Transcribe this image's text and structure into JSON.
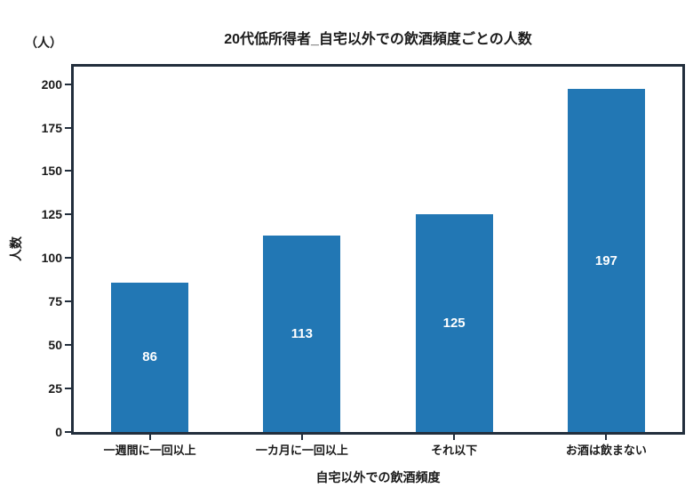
{
  "chart_data": {
    "type": "bar",
    "title": "20代低所得者_自宅以外での飲酒頻度ごとの人数",
    "y_unit_label": "（人）",
    "xlabel": "自宅以外での飲酒頻度",
    "ylabel": "人数",
    "categories": [
      "一週間に一回以上",
      "一カ月に一回以上",
      "それ以下",
      "お酒は飲まない"
    ],
    "values": [
      86,
      113,
      125,
      197
    ],
    "bar_value_labels": [
      "86",
      "113",
      "125",
      "197"
    ],
    "yticks": [
      0,
      25,
      50,
      75,
      100,
      125,
      150,
      175,
      200
    ],
    "ylim": [
      0,
      210
    ],
    "grid": false,
    "legend_position": "none",
    "colors": {
      "bar": "#2277b4",
      "bar_value_label": "#ffffff",
      "frame": "#222e3c",
      "text": "#1a1a1a",
      "background": "#ffffff"
    }
  }
}
